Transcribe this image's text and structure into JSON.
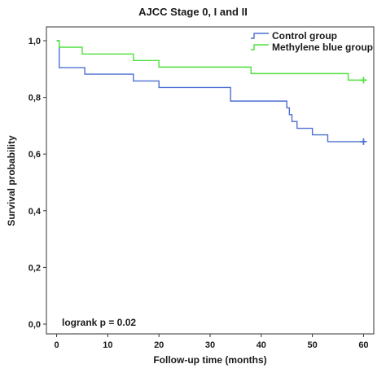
{
  "chart_data": {
    "type": "line",
    "title": "AJCC Stage 0, I and II",
    "xlabel": "Follow-up time (months)",
    "ylabel": "Survival probability",
    "xlim": [
      -2,
      62
    ],
    "ylim": [
      0,
      1.0
    ],
    "xticks": [
      0,
      10,
      20,
      30,
      40,
      50,
      60
    ],
    "xtick_labels": [
      "0",
      "10",
      "20",
      "30",
      "40",
      "50",
      "60"
    ],
    "yticks": [
      0,
      0.2,
      0.4,
      0.6,
      0.8,
      1.0
    ],
    "ytick_labels": [
      "0,0",
      "0,2",
      "0,4",
      "0,6",
      "0,8",
      "1,0"
    ],
    "grid": false,
    "legend_position": "top-right",
    "series": [
      {
        "name": "Control group",
        "color": "#4d6fd1",
        "step": true,
        "x": [
          0,
          0.5,
          5.5,
          15,
          20,
          34,
          45,
          45.5,
          46,
          47,
          50,
          53,
          57,
          60
        ],
        "y": [
          1.0,
          0.905,
          0.882,
          0.858,
          0.835,
          0.787,
          0.763,
          0.739,
          0.715,
          0.691,
          0.668,
          0.644,
          0.644,
          0.644
        ],
        "censored": [
          {
            "x": 60,
            "y": 0.644
          }
        ]
      },
      {
        "name": "Methylene blue group",
        "color": "#4fe03c",
        "step": true,
        "x": [
          0,
          0.5,
          5,
          15,
          20,
          38,
          57,
          60
        ],
        "y": [
          1.0,
          0.977,
          0.953,
          0.93,
          0.907,
          0.884,
          0.861,
          0.861
        ],
        "censored": [
          {
            "x": 60,
            "y": 0.861
          }
        ]
      }
    ],
    "annotations": [
      {
        "text": "logrank p = 0.02"
      }
    ]
  }
}
